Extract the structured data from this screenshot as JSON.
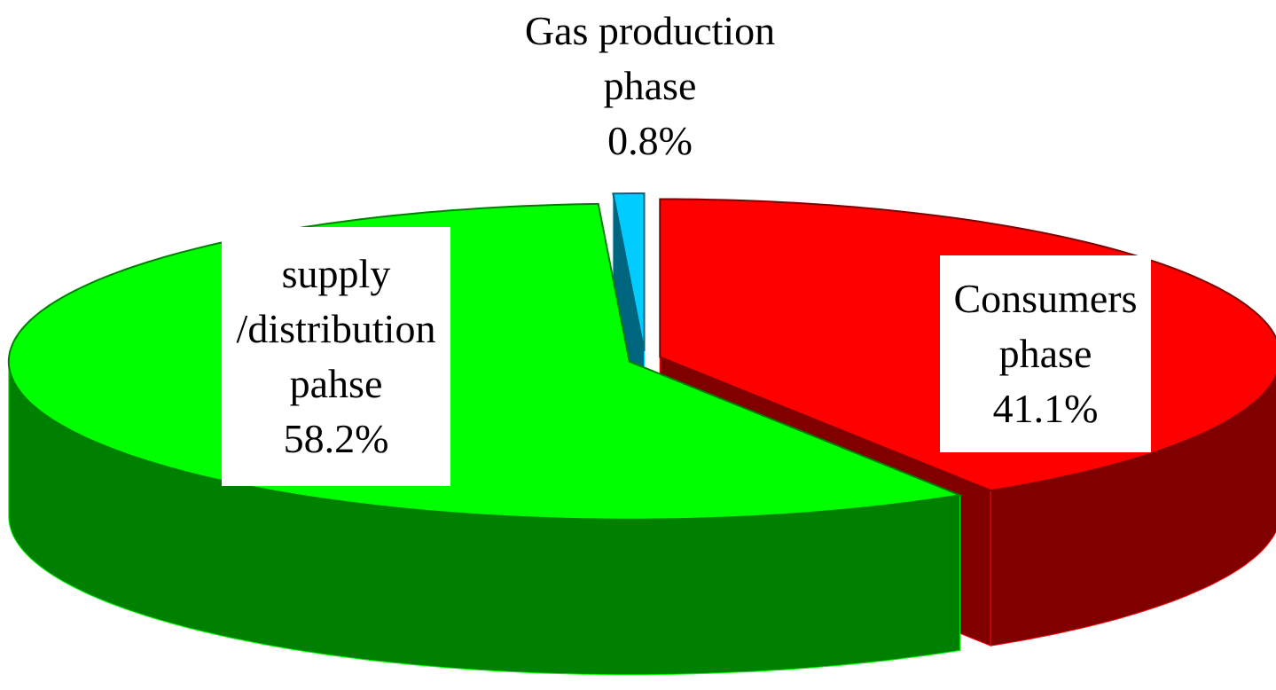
{
  "chart_data": {
    "type": "pie",
    "categories": [
      "Consumers\nphase",
      "supply\n/distribution\npahse",
      "Gas production\nphase"
    ],
    "values": [
      41.1,
      58.2,
      0.8
    ],
    "value_labels": [
      "41.1%",
      "58.2%",
      "0.8%"
    ],
    "colors": [
      "#ff0000",
      "#00ff00",
      "#00ccff"
    ]
  }
}
